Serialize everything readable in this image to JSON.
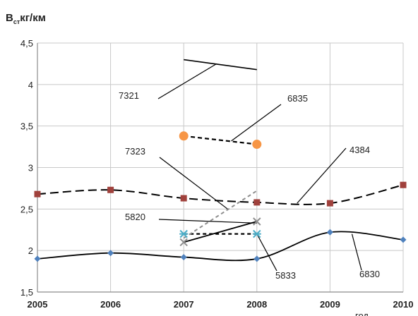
{
  "chart_data": {
    "type": "line",
    "title": "",
    "ylabel_main": "B",
    "ylabel_sub": "ст",
    "ylabel_unit": "кг/км",
    "xlabel": "год",
    "xlim": [
      2005,
      2010
    ],
    "ylim": [
      1.5,
      4.5
    ],
    "x_ticks": [
      "2005",
      "2006",
      "2007",
      "2008",
      "2009",
      "2010"
    ],
    "y_ticks": [
      "1,5",
      "2",
      "2,5",
      "3",
      "3,5",
      "4",
      "4,5"
    ],
    "grid": true,
    "colors": {
      "4384": "#a0413c",
      "6830": "#4f81bd",
      "6835": "#f79646",
      "7321": "#000000",
      "5820": "#8e8e8e",
      "5833": "#4bacc6",
      "7323": "#000000",
      "grid": "#c8c8c8",
      "axis": "#8c8c8c",
      "text": "#222222"
    },
    "series": [
      {
        "name": "4384",
        "style": "dashed",
        "marker": "square",
        "x": [
          2005,
          2006,
          2007,
          2008,
          2009,
          2010
        ],
        "y": [
          2.68,
          2.73,
          2.63,
          2.58,
          2.57,
          2.79
        ]
      },
      {
        "name": "6830",
        "style": "solid",
        "marker": "diamond",
        "x": [
          2005,
          2006,
          2007,
          2008,
          2009,
          2010
        ],
        "y": [
          1.9,
          1.97,
          1.92,
          1.9,
          2.22,
          2.13
        ]
      },
      {
        "name": "6835",
        "style": "dashed",
        "marker": "circle",
        "x": [
          2007,
          2008
        ],
        "y": [
          3.38,
          3.28
        ]
      },
      {
        "name": "7321",
        "style": "solid",
        "marker": "none",
        "x": [
          2007,
          2008
        ],
        "y": [
          4.3,
          4.18
        ]
      },
      {
        "name": "5820",
        "style": "solid",
        "marker": "x",
        "x": [
          2007,
          2008
        ],
        "y": [
          2.1,
          2.35
        ]
      },
      {
        "name": "5833",
        "style": "dashed",
        "marker": "star",
        "x": [
          2007,
          2008
        ],
        "y": [
          2.2,
          2.2
        ]
      },
      {
        "name": "7323",
        "style": "dashed",
        "marker": "none",
        "x": [
          2007,
          2008
        ],
        "y": [
          2.15,
          2.72
        ]
      }
    ],
    "annotations": [
      {
        "label": "7321",
        "series": "7321"
      },
      {
        "label": "6835",
        "series": "6835"
      },
      {
        "label": "7323",
        "series": "7323"
      },
      {
        "label": "4384",
        "series": "4384"
      },
      {
        "label": "5820",
        "series": "5820"
      },
      {
        "label": "5833",
        "series": "5833"
      },
      {
        "label": "6830",
        "series": "6830"
      }
    ]
  }
}
